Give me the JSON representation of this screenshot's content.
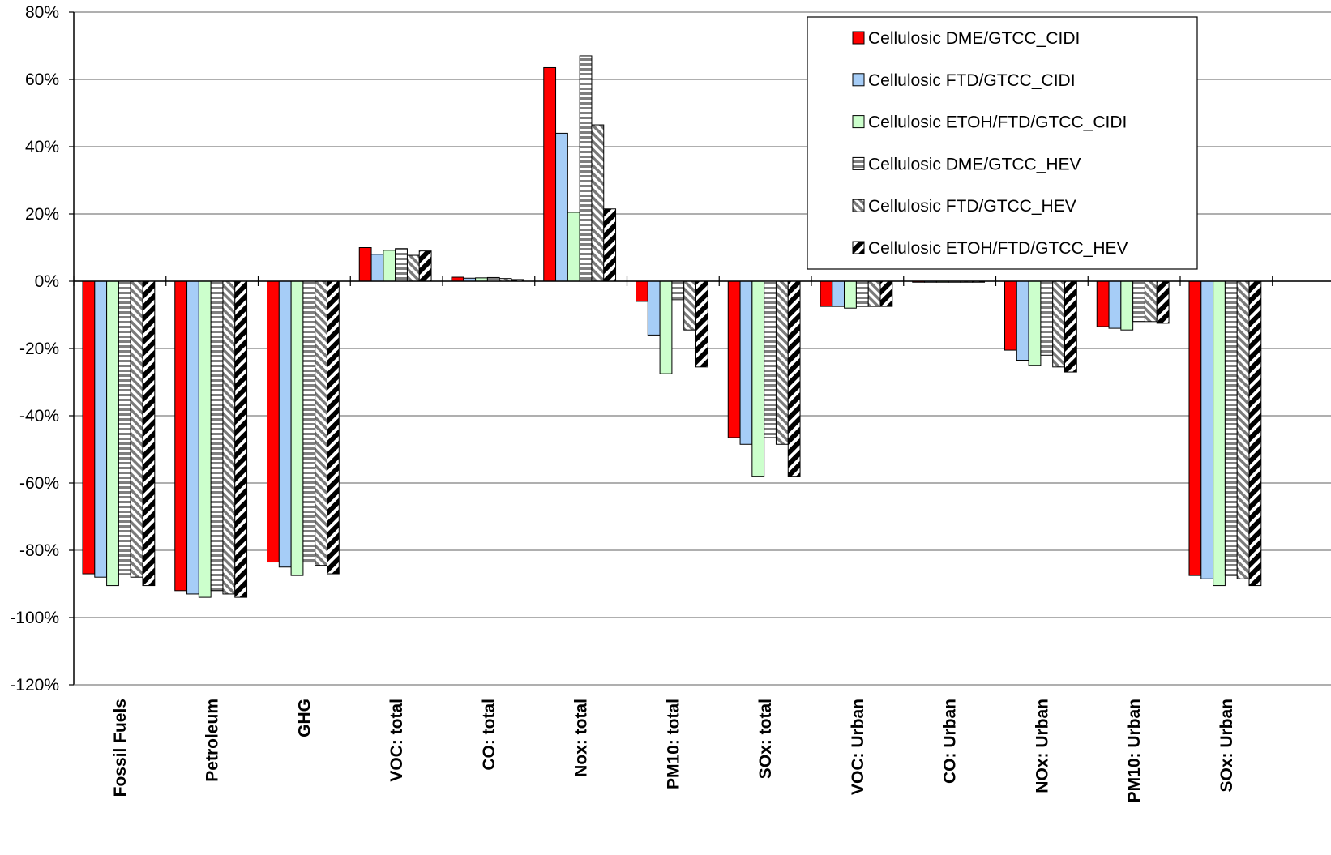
{
  "chart_data": {
    "type": "bar",
    "title": "",
    "xlabel": "",
    "ylabel": "",
    "ylim": [
      -120,
      80
    ],
    "ytick_step": 20,
    "ytick_suffix": "%",
    "grid": true,
    "legend_position": "top-right",
    "categories": [
      "Fossil Fuels",
      "Petroleum",
      "GHG",
      "VOC: total",
      "CO: total",
      "Nox: total",
      "PM10: total",
      "SOx: total",
      "VOC: Urban",
      "CO: Urban",
      "NOx: Urban",
      "PM10: Urban",
      "SOx: Urban"
    ],
    "series": [
      {
        "name": "Cellulosic DME/GTCC_CIDI",
        "color": "#ff0000",
        "pattern": "solid",
        "values": [
          -87,
          -92,
          -83.5,
          10,
          1.2,
          63.5,
          -6,
          -46.5,
          -7.5,
          -0.3,
          -20.5,
          -13.5,
          -87.5
        ]
      },
      {
        "name": "Cellulosic FTD/GTCC_CIDI",
        "color": "#a6cdf7",
        "pattern": "solid",
        "values": [
          -88,
          -93,
          -85,
          8,
          0.9,
          44,
          -16,
          -48.5,
          -7.5,
          -0.3,
          -23.5,
          -14,
          -88.5
        ]
      },
      {
        "name": "Cellulosic ETOH/FTD/GTCC_CIDI",
        "color": "#ccffcc",
        "pattern": "solid",
        "values": [
          -90.5,
          -94,
          -87.5,
          9.2,
          1.0,
          20.5,
          -27.5,
          -58,
          -8,
          -0.3,
          -25,
          -14.5,
          -90.5
        ]
      },
      {
        "name": "Cellulosic DME/GTCC_HEV",
        "color": "#808080",
        "pattern": "horizontal",
        "values": [
          -87,
          -92,
          -83.5,
          9.7,
          1.1,
          67,
          -5.5,
          -46.5,
          -7.5,
          -0.3,
          -22,
          -12,
          -87.5
        ]
      },
      {
        "name": "Cellulosic FTD/GTCC_HEV",
        "color": "#808080",
        "pattern": "diagonal",
        "values": [
          -88,
          -93,
          -84.5,
          7.7,
          0.8,
          46.5,
          -14.5,
          -48.5,
          -7.5,
          -0.3,
          -25.5,
          -12,
          -88.5
        ]
      },
      {
        "name": "Cellulosic ETOH/FTD/GTCC_HEV",
        "color": "#000000",
        "pattern": "diagonal-bold",
        "values": [
          -90.5,
          -94,
          -87,
          9,
          0.5,
          21.5,
          -25.5,
          -58,
          -7.5,
          -0.3,
          -27,
          -12.5,
          -90.5
        ]
      }
    ]
  }
}
